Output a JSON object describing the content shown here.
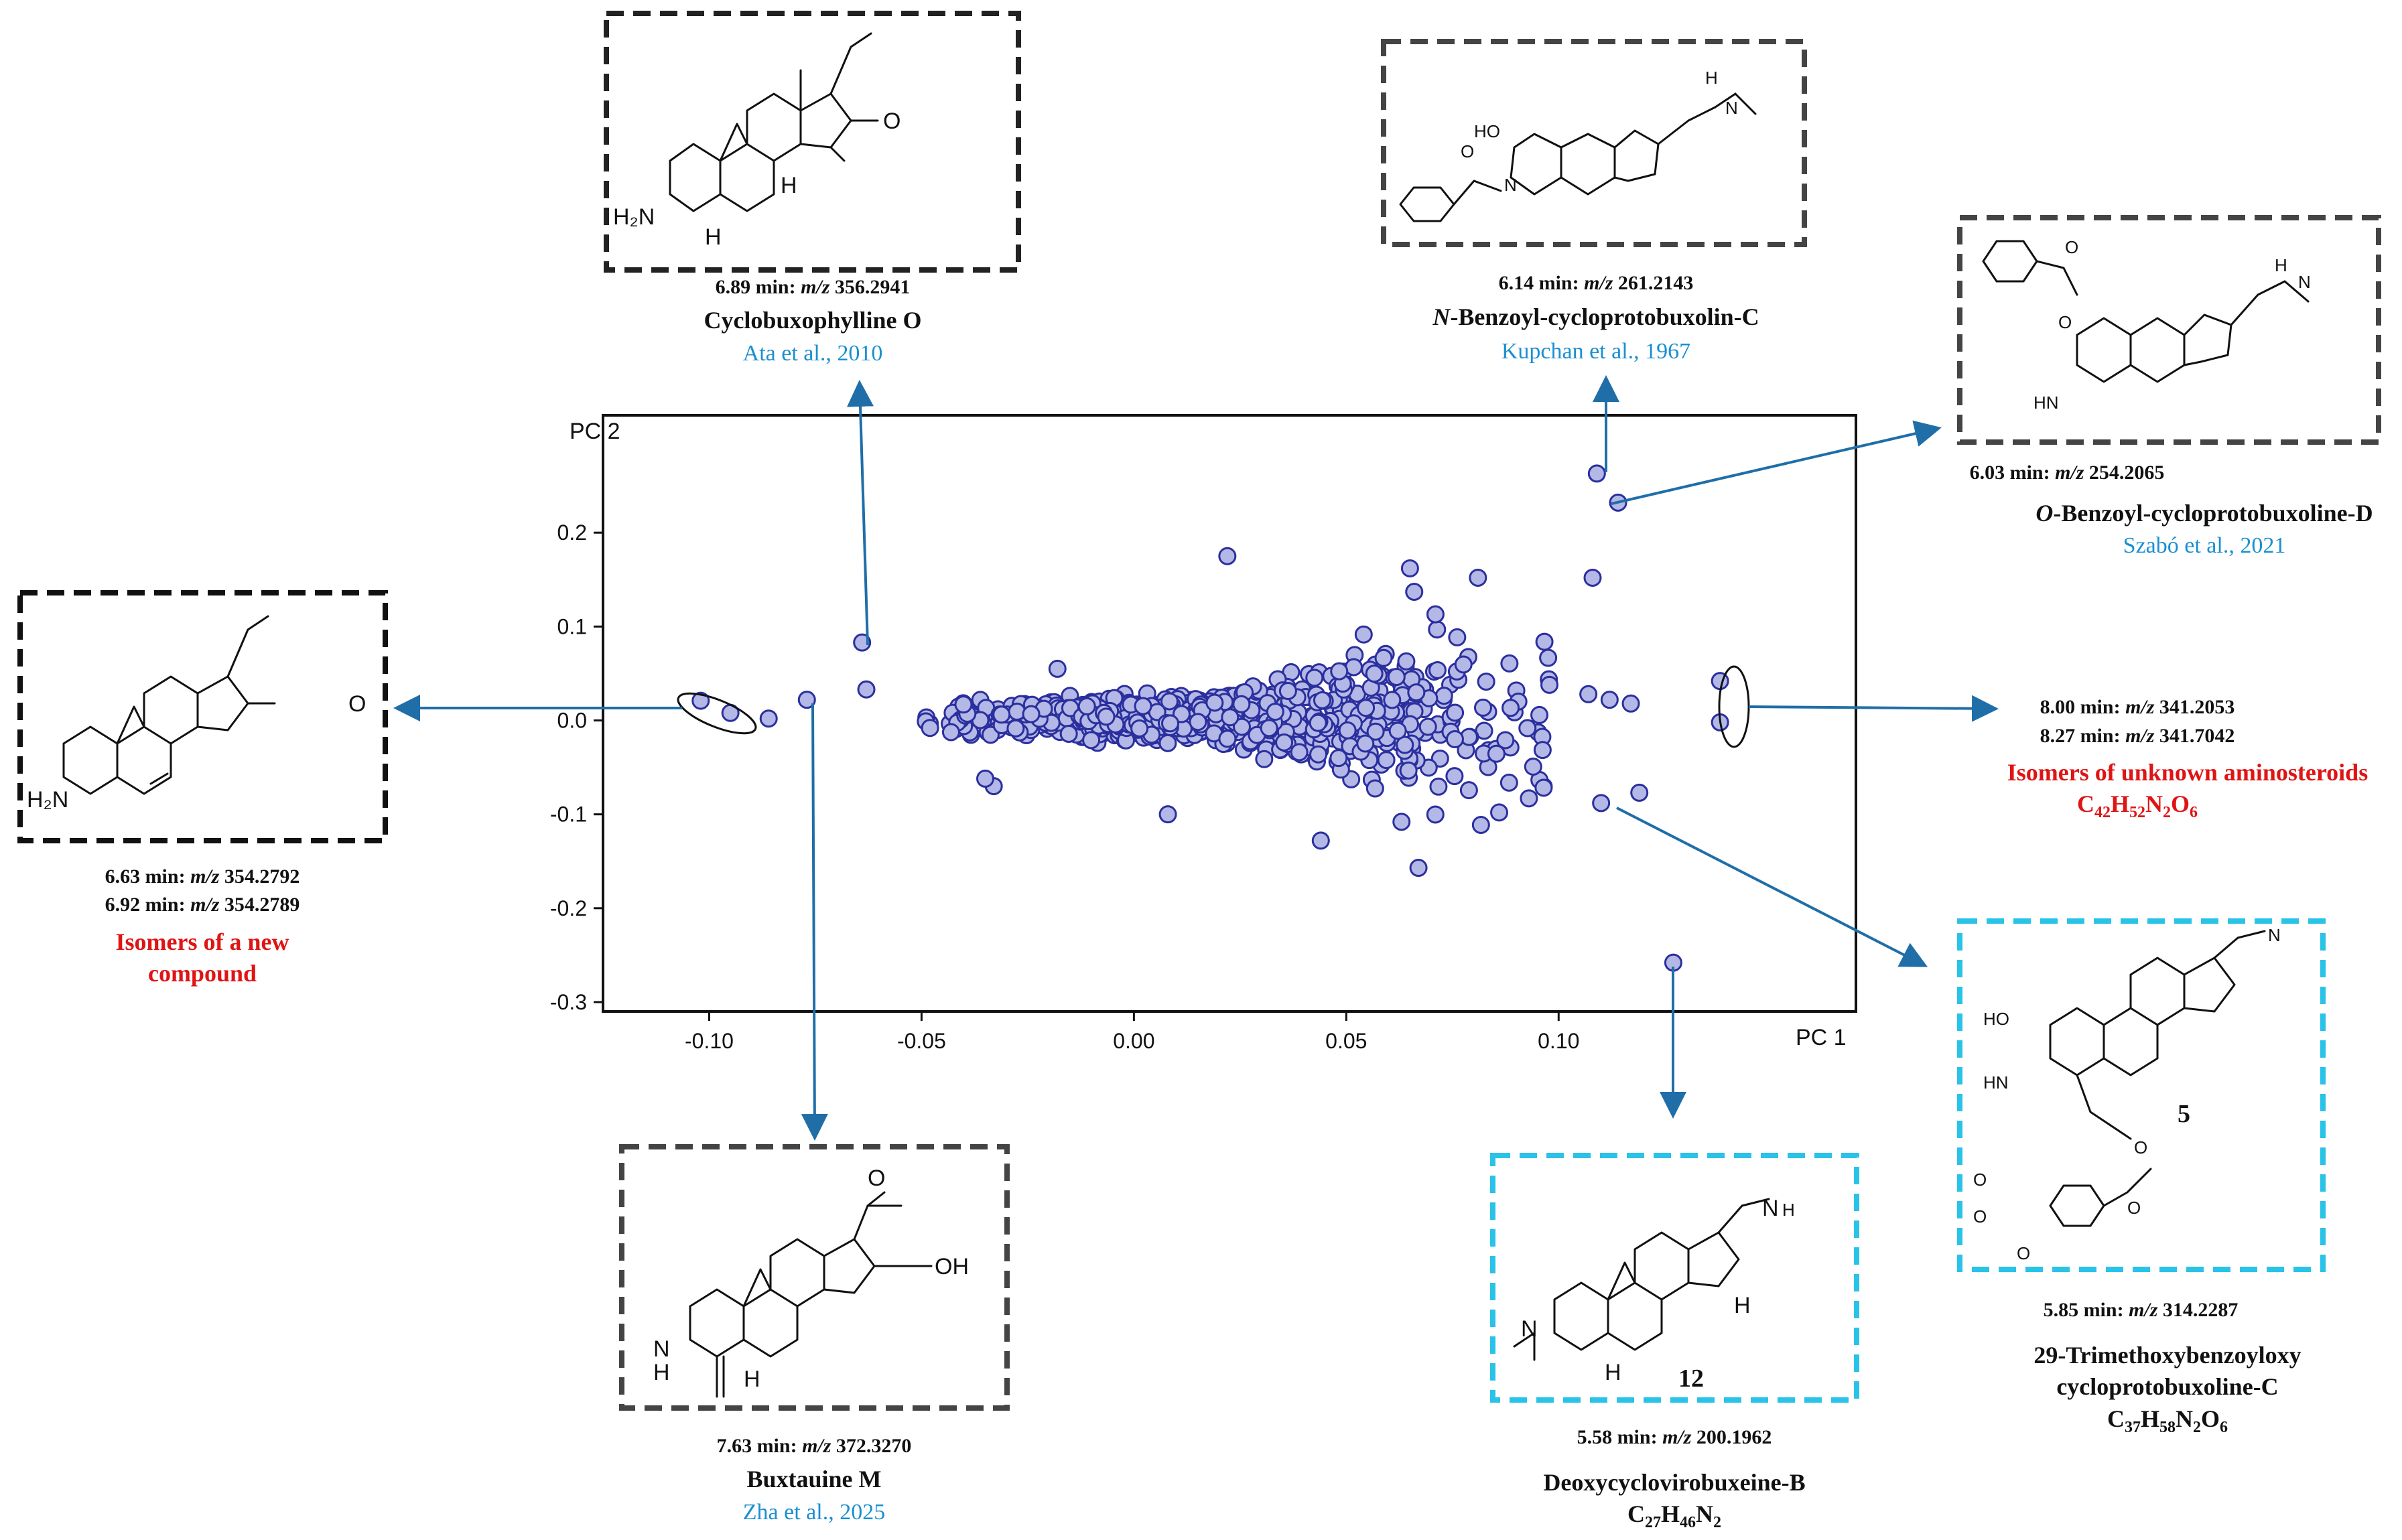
{
  "chart_data": {
    "type": "scatter",
    "title": "",
    "xlabel": "PC 1",
    "ylabel": "PC 2",
    "xlim": [
      -0.125,
      0.17
    ],
    "ylim": [
      -0.31,
      0.325
    ],
    "xticks": [
      -0.1,
      -0.05,
      0.0,
      0.05,
      0.1
    ],
    "xtick_labels": [
      "-0.10",
      "-0.05",
      "0.00",
      "0.05",
      "0.10"
    ],
    "yticks": [
      0.2,
      0.1,
      0.0,
      -0.1,
      -0.2,
      -0.3
    ],
    "ytick_labels": [
      "0.2",
      "0.1",
      "0.0",
      "-0.1",
      "-0.2",
      "-0.3"
    ],
    "grid": false,
    "marker_color": "#2b2f9e",
    "marker_fill": "#b3b8e6",
    "highlight_points": [
      {
        "x": -0.102,
        "y": 0.021
      },
      {
        "x": -0.095,
        "y": 0.008
      },
      {
        "x": -0.086,
        "y": 0.002
      },
      {
        "x": -0.077,
        "y": 0.022
      },
      {
        "x": -0.064,
        "y": 0.083
      },
      {
        "x": -0.063,
        "y": 0.033
      },
      {
        "x": 0.109,
        "y": 0.263
      },
      {
        "x": 0.114,
        "y": 0.232
      },
      {
        "x": 0.022,
        "y": 0.175
      },
      {
        "x": 0.065,
        "y": 0.162
      },
      {
        "x": 0.081,
        "y": 0.152
      },
      {
        "x": 0.108,
        "y": 0.152
      },
      {
        "x": 0.066,
        "y": 0.137
      },
      {
        "x": 0.071,
        "y": 0.113
      },
      {
        "x": 0.138,
        "y": 0.042
      },
      {
        "x": 0.138,
        "y": -0.002
      },
      {
        "x": 0.11,
        "y": -0.088
      },
      {
        "x": 0.119,
        "y": -0.077
      },
      {
        "x": 0.127,
        "y": -0.258
      },
      {
        "x": 0.067,
        "y": -0.157
      },
      {
        "x": 0.044,
        "y": -0.128
      },
      {
        "x": 0.063,
        "y": -0.108
      },
      {
        "x": 0.093,
        "y": -0.083
      },
      {
        "x": 0.086,
        "y": -0.098
      },
      {
        "x": 0.107,
        "y": 0.028
      },
      {
        "x": 0.112,
        "y": 0.022
      },
      {
        "x": 0.117,
        "y": 0.018
      },
      {
        "x": -0.049,
        "y": -0.001
      },
      {
        "x": -0.048,
        "y": -0.008
      },
      {
        "x": -0.033,
        "y": -0.07
      },
      {
        "x": -0.035,
        "y": -0.062
      },
      {
        "x": 0.008,
        "y": -0.1
      },
      {
        "x": -0.018,
        "y": 0.055
      }
    ],
    "cluster": {
      "center": [
        0.012,
        0.003
      ],
      "spread_x": 0.03,
      "spread_y": 0.028,
      "count": 900
    }
  },
  "annotations": {
    "cyclobuxophylline": {
      "time": "6.89 min:",
      "mz_label": "m/z",
      "mz": "356.2941",
      "name": "Cyclobuxophylline O",
      "ref": "Ata et al., 2010"
    },
    "benzoyl_c": {
      "time": "6.14 min:",
      "mz_label": "m/z",
      "mz": "261.2143",
      "name_prefix": "N",
      "name": "-Benzoyl-cycloprotobuxolin-C",
      "ref": "Kupchan et al., 1967"
    },
    "benzoyl_d": {
      "time": "6.03 min:",
      "mz_label": "m/z",
      "mz": "254.2065",
      "name_prefix": "O",
      "name": "-Benzoyl-cycloprotobuxoline-D",
      "ref": "Szabó et al., 2021"
    },
    "new_compound": {
      "time1": "6.63 min:",
      "mz1": "354.2792",
      "time2": "6.92 min:",
      "mz2": "354.2789",
      "mz_label": "m/z",
      "line1": "Isomers of a new",
      "line2": "compound"
    },
    "unknown": {
      "time1": "8.00 min:",
      "mz1": "341.2053",
      "time2": "8.27 min:",
      "mz2": "341.7042",
      "mz_label": "m/z",
      "label": "Isomers of unknown aminosteroids",
      "formula": "C42H52N2O6"
    },
    "buxtauine": {
      "time": "7.63 min:",
      "mz_label": "m/z",
      "mz": "372.3270",
      "name": "Buxtauine M",
      "ref": "Zha  et al., 2025"
    },
    "deoxycyclo": {
      "time": "5.58 min:",
      "mz_label": "m/z",
      "mz": "200.1962",
      "name": "Deoxycyclovirobuxeine-B",
      "formula": "C27H46N2",
      "number": "12"
    },
    "trimethoxy": {
      "time": "5.85 min:",
      "mz_label": "m/z",
      "mz": "314.2287",
      "name1": "29-Trimethoxybenzoyloxy",
      "name2": "cycloprotobuxoline-C",
      "formula": "C37H58N2O6",
      "number": "5"
    }
  },
  "atoms": {
    "h2n": "H₂N",
    "h": "H",
    "o": "O",
    "n": "N",
    "ho": "HO",
    "hn": "HN",
    "oh": "OH"
  },
  "colors": {
    "dark_box": "#222222",
    "cyan_box": "#29c3e8",
    "arrow": "#1f6ea8",
    "ref_blue": "#1a8fd0",
    "red": "#e01414"
  }
}
